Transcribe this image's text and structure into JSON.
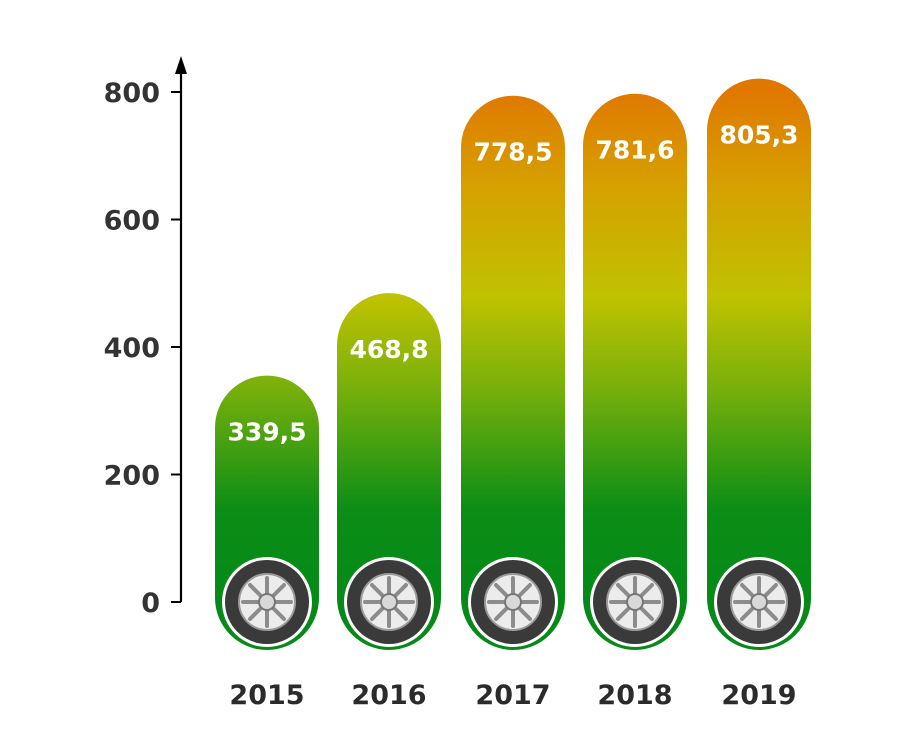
{
  "chart_data": {
    "type": "bar",
    "categories": [
      "2015",
      "2016",
      "2017",
      "2018",
      "2019"
    ],
    "values": [
      339.5,
      468.8,
      778.5,
      781.6,
      805.3
    ],
    "data_labels": [
      "339,5",
      "468,8",
      "778,5",
      "781,6",
      "805,3"
    ],
    "y_ticks": [
      0,
      200,
      400,
      600,
      800
    ],
    "ylim": [
      0,
      800
    ],
    "grid": false,
    "legend": "none",
    "bar_icon": "tire-icon",
    "colors": {
      "bottom": "#058a18",
      "middle": "#c0c200",
      "top": "#e07800",
      "axis": "#000000",
      "tire_outer": "#3a3a3a",
      "tire_rim": "#d0d0d0"
    }
  }
}
